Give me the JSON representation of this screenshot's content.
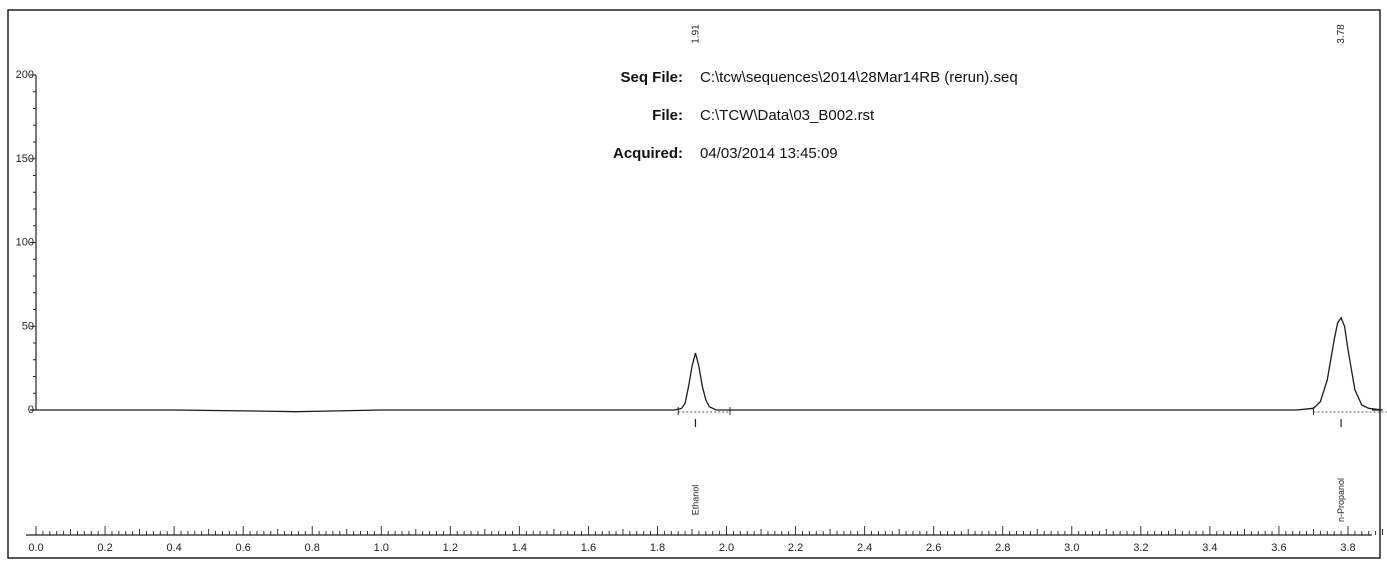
{
  "info": {
    "seq_label": "Seq File:",
    "seq_value": "C:\\tcw\\sequences\\2014\\28Mar14RB (rerun).seq",
    "file_label": "File:",
    "file_value": "C:\\TCW\\Data\\03_B002.rst",
    "acquired_label": "Acquired:",
    "acquired_value": "04/03/2014 13:45:09"
  },
  "chart_data": {
    "type": "line",
    "title": "",
    "xlabel": "",
    "ylabel": "",
    "xlim": [
      0.0,
      3.9
    ],
    "ylim": [
      0,
      200
    ],
    "x_ticks": [
      "0.0",
      "0.2",
      "0.4",
      "0.6",
      "0.8",
      "1.0",
      "1.2",
      "1.4",
      "1.6",
      "1.8",
      "2.0",
      "2.2",
      "2.4",
      "2.6",
      "2.8",
      "3.0",
      "3.2",
      "3.4",
      "3.6",
      "3.8"
    ],
    "y_ticks": [
      "0",
      "50",
      "100",
      "150",
      "200"
    ],
    "grid": false,
    "line_color": "#1a1a1a",
    "series": [
      {
        "x": [
          0.0,
          0.2,
          0.4,
          0.6,
          0.7,
          0.75,
          0.8,
          1.0,
          1.2,
          1.4,
          1.6,
          1.8,
          1.85,
          1.87,
          1.88,
          1.89,
          1.9,
          1.91,
          1.92,
          1.93,
          1.94,
          1.95,
          1.97,
          2.0,
          2.2,
          2.4,
          2.6,
          2.8,
          3.0,
          3.2,
          3.4,
          3.6,
          3.65,
          3.7,
          3.72,
          3.74,
          3.76,
          3.77,
          3.78,
          3.79,
          3.8,
          3.82,
          3.84,
          3.86,
          3.9
        ],
        "y": [
          0,
          0,
          0,
          -0.5,
          -0.8,
          -1,
          -0.8,
          0,
          0,
          0,
          0,
          0,
          0,
          1,
          4,
          14,
          26,
          34,
          26,
          14,
          6,
          2,
          0,
          0,
          0,
          0,
          0,
          0,
          0,
          0,
          0,
          0,
          0,
          1,
          5,
          18,
          42,
          52,
          55,
          50,
          36,
          12,
          3,
          1,
          0
        ]
      }
    ],
    "peaks": [
      {
        "name": "Ethanol",
        "rt": "1.91",
        "x": 1.91,
        "height": 34,
        "start": 1.86,
        "end": 2.01
      },
      {
        "name": "n-Propanol",
        "rt": "3.78",
        "x": 3.78,
        "height": 55,
        "start": 3.7,
        "end": 3.92
      }
    ]
  }
}
